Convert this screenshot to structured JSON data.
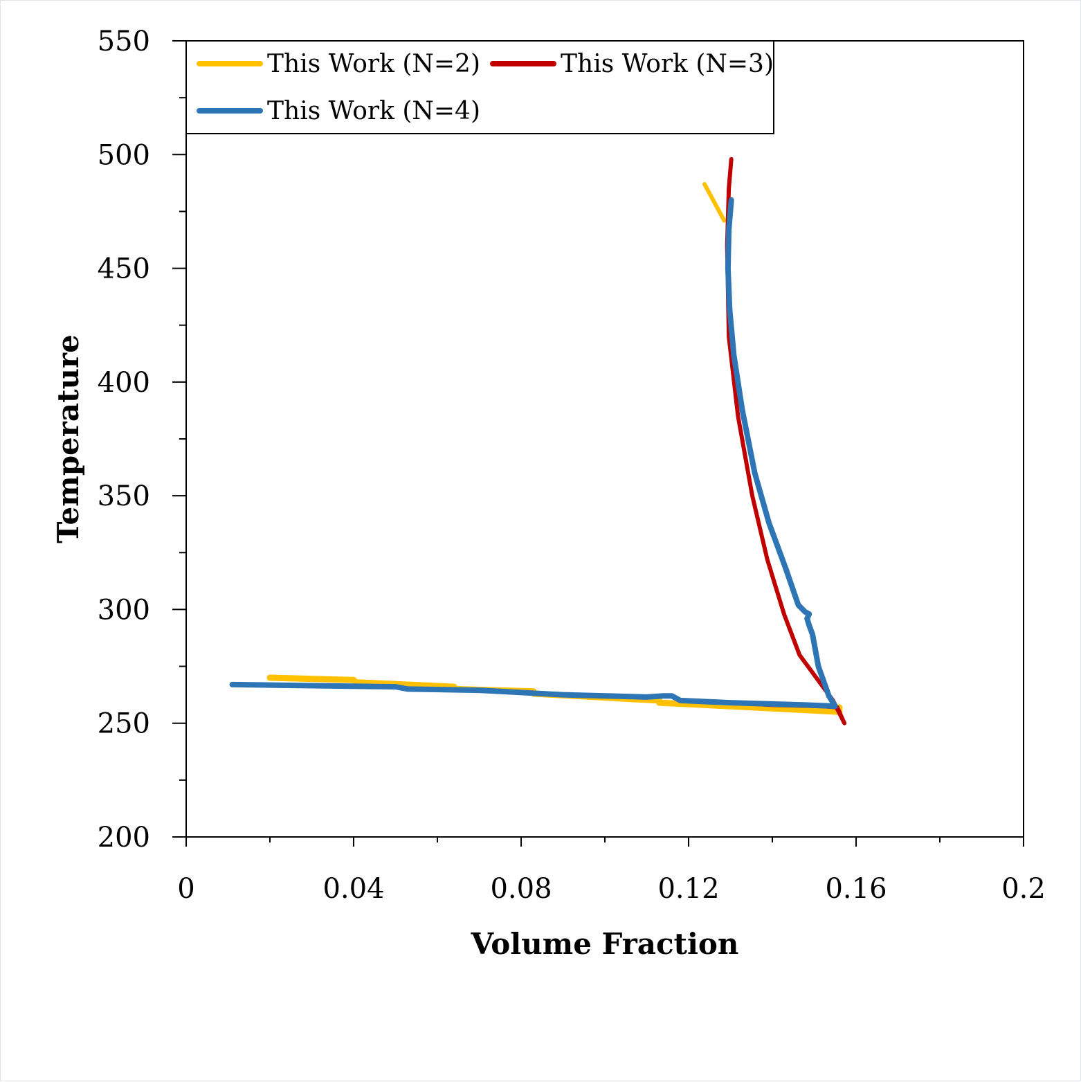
{
  "chart_data": {
    "type": "line",
    "xlabel": "Volume Fraction",
    "ylabel": "Temperature",
    "xlim": [
      0,
      0.2
    ],
    "ylim": [
      200,
      550
    ],
    "x_ticks": [
      "0",
      "0.04",
      "0.08",
      "0.12",
      "0.16",
      "0.2"
    ],
    "x_tick_values": [
      0,
      0.04,
      0.08,
      0.12,
      0.16,
      0.2
    ],
    "y_ticks": [
      "200",
      "250",
      "300",
      "350",
      "400",
      "450",
      "500",
      "550"
    ],
    "y_tick_values": [
      200,
      250,
      300,
      350,
      400,
      450,
      500,
      550
    ],
    "grid": false,
    "legend_position": "top-left",
    "series": [
      {
        "name": "This Work (N=2)",
        "color": "#FFC000",
        "points": [
          [
            0.02,
            270
          ],
          [
            0.04,
            269
          ],
          [
            0.0405,
            268
          ],
          [
            0.064,
            266
          ],
          [
            0.064,
            265
          ],
          [
            0.083,
            264
          ],
          [
            0.083,
            263
          ],
          [
            0.113,
            260
          ],
          [
            0.113,
            259
          ],
          [
            0.135,
            257
          ],
          [
            0.156,
            255
          ],
          [
            0.156,
            257
          ]
        ],
        "points_upper": [
          [
            0.1238,
            487
          ],
          [
            0.1285,
            471
          ]
        ]
      },
      {
        "name": "This Work (N=3)",
        "color": "#C00000",
        "points": [
          [
            0.1302,
            498
          ],
          [
            0.1296,
            485
          ],
          [
            0.1292,
            460
          ],
          [
            0.1296,
            420
          ],
          [
            0.1318,
            385
          ],
          [
            0.1352,
            350
          ],
          [
            0.1388,
            322
          ],
          [
            0.1428,
            298
          ],
          [
            0.1465,
            280
          ],
          [
            0.1505,
            270
          ],
          [
            0.1545,
            260
          ],
          [
            0.1572,
            250
          ],
          [
            0.1555,
            257
          ],
          [
            0.152,
            257.5
          ],
          [
            0.14,
            258
          ],
          [
            0.12,
            260
          ]
        ]
      },
      {
        "name": "This Work (N=4)",
        "color": "#2E75B6",
        "points": [
          [
            0.011,
            267
          ],
          [
            0.03,
            266.5
          ],
          [
            0.05,
            266
          ],
          [
            0.053,
            265
          ],
          [
            0.07,
            264.5
          ],
          [
            0.09,
            262.5
          ],
          [
            0.11,
            261.5
          ],
          [
            0.114,
            262
          ],
          [
            0.116,
            262
          ],
          [
            0.118,
            260
          ],
          [
            0.13,
            259
          ],
          [
            0.148,
            258
          ],
          [
            0.155,
            257.5
          ],
          [
            0.1535,
            262
          ],
          [
            0.151,
            275
          ],
          [
            0.1496,
            289
          ],
          [
            0.1488,
            293
          ],
          [
            0.1483,
            296
          ],
          [
            0.1488,
            298
          ],
          [
            0.1478,
            299
          ],
          [
            0.1462,
            302
          ],
          [
            0.1432,
            318
          ],
          [
            0.1392,
            338
          ],
          [
            0.1358,
            360
          ],
          [
            0.1328,
            388
          ],
          [
            0.1308,
            412
          ],
          [
            0.1298,
            432
          ],
          [
            0.1294,
            450
          ],
          [
            0.1296,
            467
          ],
          [
            0.1302,
            480
          ]
        ]
      }
    ]
  }
}
